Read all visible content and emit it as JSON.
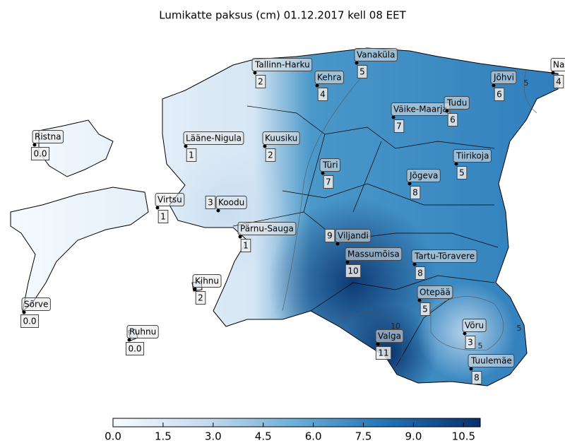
{
  "title": "Lumikatte paksus (cm) 01.12.2017 kell 08 EET",
  "stations": [
    {
      "name": "Vanaküla",
      "value": "5"
    },
    {
      "name": "Tallinn-Harku",
      "value": "2"
    },
    {
      "name": "Kehra",
      "value": "4"
    },
    {
      "name": "Narva",
      "value": "4"
    },
    {
      "name": "Jõhvi",
      "value": "6"
    },
    {
      "name": "Väike-Maarja",
      "value": "7"
    },
    {
      "name": "Tudu",
      "value": "6"
    },
    {
      "name": "Ristna",
      "value": "0.0"
    },
    {
      "name": "Lääne-Nigula",
      "value": "1"
    },
    {
      "name": "Kuusiku",
      "value": "2"
    },
    {
      "name": "Türi",
      "value": "7"
    },
    {
      "name": "Tiirikoja",
      "value": "5"
    },
    {
      "name": "Jõgeva",
      "value": "8"
    },
    {
      "name": "Virtsu",
      "value": "1"
    },
    {
      "name": "Koodu",
      "value": "3"
    },
    {
      "name": "Pärnu-Sauga",
      "value": "1"
    },
    {
      "name": "Viljandi",
      "value": "9"
    },
    {
      "name": "Massumõisa",
      "value": "10"
    },
    {
      "name": "Tartu-Tõravere",
      "value": "8"
    },
    {
      "name": "Kihnu",
      "value": "2"
    },
    {
      "name": "Otepää",
      "value": "5"
    },
    {
      "name": "Sõrve",
      "value": "0.0"
    },
    {
      "name": "Võru",
      "value": "3"
    },
    {
      "name": "Valga",
      "value": "11"
    },
    {
      "name": "Ruhnu",
      "value": "0.0"
    },
    {
      "name": "Tuulemäe",
      "value": "8"
    }
  ],
  "contour_labels": [
    "5",
    "5",
    "5",
    "10"
  ],
  "colorbar": {
    "range": [
      0,
      11
    ],
    "ticks": [
      {
        "value": 0,
        "label": "0.0"
      },
      1.5,
      {
        "value": 3,
        "label": "3.0"
      },
      4.5,
      {
        "value": 6,
        "label": "6.0"
      },
      7.5,
      {
        "value": 9,
        "label": "9.0"
      },
      10.5
    ]
  }
}
